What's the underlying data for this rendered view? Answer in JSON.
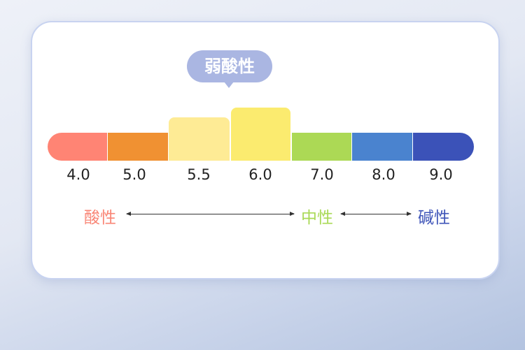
{
  "callout": {
    "label": "弱酸性",
    "color": "#aab6e2"
  },
  "scale": [
    {
      "value": "4.0",
      "color": "#ff8474"
    },
    {
      "value": "5.0",
      "color": "#f09132"
    },
    {
      "value": "5.5",
      "color": "#feeb95"
    },
    {
      "value": "6.0",
      "color": "#fbeb6f"
    },
    {
      "value": "7.0",
      "color": "#acd955"
    },
    {
      "value": "8.0",
      "color": "#4a83cf"
    },
    {
      "value": "9.0",
      "color": "#3b52b8"
    }
  ],
  "categories": [
    {
      "label": "酸性",
      "color": "#f98676"
    },
    {
      "label": "中性",
      "color": "#a9d956"
    },
    {
      "label": "碱性",
      "color": "#3e54b8"
    }
  ]
}
